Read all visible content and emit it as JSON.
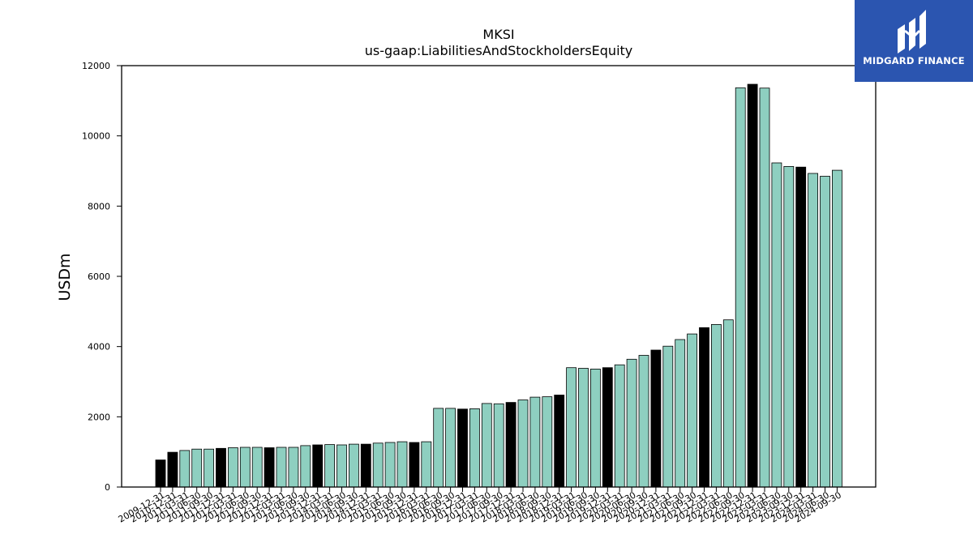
{
  "brand": {
    "name": "MIDGARD FINANCE"
  },
  "colors": {
    "bar_default": "#8ecfc0",
    "bar_highlight": "#000000",
    "bar_edge": "#000000",
    "brand_bg": "#2b55b0"
  },
  "chart_data": {
    "type": "bar",
    "title": "MKSI",
    "subtitle": "us-gaap:LiabilitiesAndStockholdersEquity",
    "xlabel": "",
    "ylabel": "USDm",
    "ylim": [
      0,
      12000
    ],
    "yticks": [
      0,
      2000,
      4000,
      6000,
      8000,
      10000,
      12000
    ],
    "grid": false,
    "categories": [
      "2009-12-31",
      "2010-12-31",
      "2011-03-31",
      "2011-06-30",
      "2011-09-30",
      "2011-12-31",
      "2012-03-31",
      "2012-06-30",
      "2012-09-30",
      "2012-12-31",
      "2013-03-31",
      "2013-06-30",
      "2013-09-30",
      "2013-12-31",
      "2014-03-31",
      "2014-06-30",
      "2014-09-30",
      "2014-12-31",
      "2015-03-31",
      "2015-06-30",
      "2015-09-30",
      "2015-12-31",
      "2016-03-31",
      "2016-06-30",
      "2016-09-30",
      "2016-12-31",
      "2017-03-31",
      "2017-06-30",
      "2017-09-30",
      "2017-12-31",
      "2018-03-31",
      "2018-06-30",
      "2018-09-30",
      "2018-12-31",
      "2019-03-31",
      "2019-06-30",
      "2019-09-30",
      "2019-12-31",
      "2020-03-31",
      "2020-06-30",
      "2020-09-30",
      "2020-12-31",
      "2021-03-31",
      "2021-06-30",
      "2021-09-30",
      "2021-12-31",
      "2022-03-31",
      "2022-06-30",
      "2022-09-30",
      "2022-12-31",
      "2023-03-31",
      "2023-06-30",
      "2023-09-30",
      "2023-12-31",
      "2024-03-31",
      "2024-06-30",
      "2024-09-30"
    ],
    "values": [
      770,
      990,
      1040,
      1080,
      1080,
      1100,
      1120,
      1130,
      1130,
      1120,
      1130,
      1130,
      1180,
      1200,
      1210,
      1200,
      1220,
      1220,
      1250,
      1270,
      1290,
      1270,
      1290,
      2240,
      2240,
      2220,
      2230,
      2380,
      2370,
      2410,
      2480,
      2560,
      2570,
      2620,
      3400,
      3380,
      3360,
      3400,
      3480,
      3640,
      3750,
      3900,
      4010,
      4200,
      4360,
      4540,
      4630,
      4760,
      11370,
      11470,
      11360,
      9230,
      9130,
      9110,
      8930,
      8850,
      9020
    ],
    "highlight": [
      true,
      true,
      false,
      false,
      false,
      true,
      false,
      false,
      false,
      true,
      false,
      false,
      false,
      true,
      false,
      false,
      false,
      true,
      false,
      false,
      false,
      true,
      false,
      false,
      false,
      true,
      false,
      false,
      false,
      true,
      false,
      false,
      false,
      true,
      false,
      false,
      false,
      true,
      false,
      false,
      false,
      true,
      false,
      false,
      false,
      true,
      false,
      false,
      false,
      true,
      false,
      false,
      false,
      true,
      false,
      false,
      false
    ]
  }
}
